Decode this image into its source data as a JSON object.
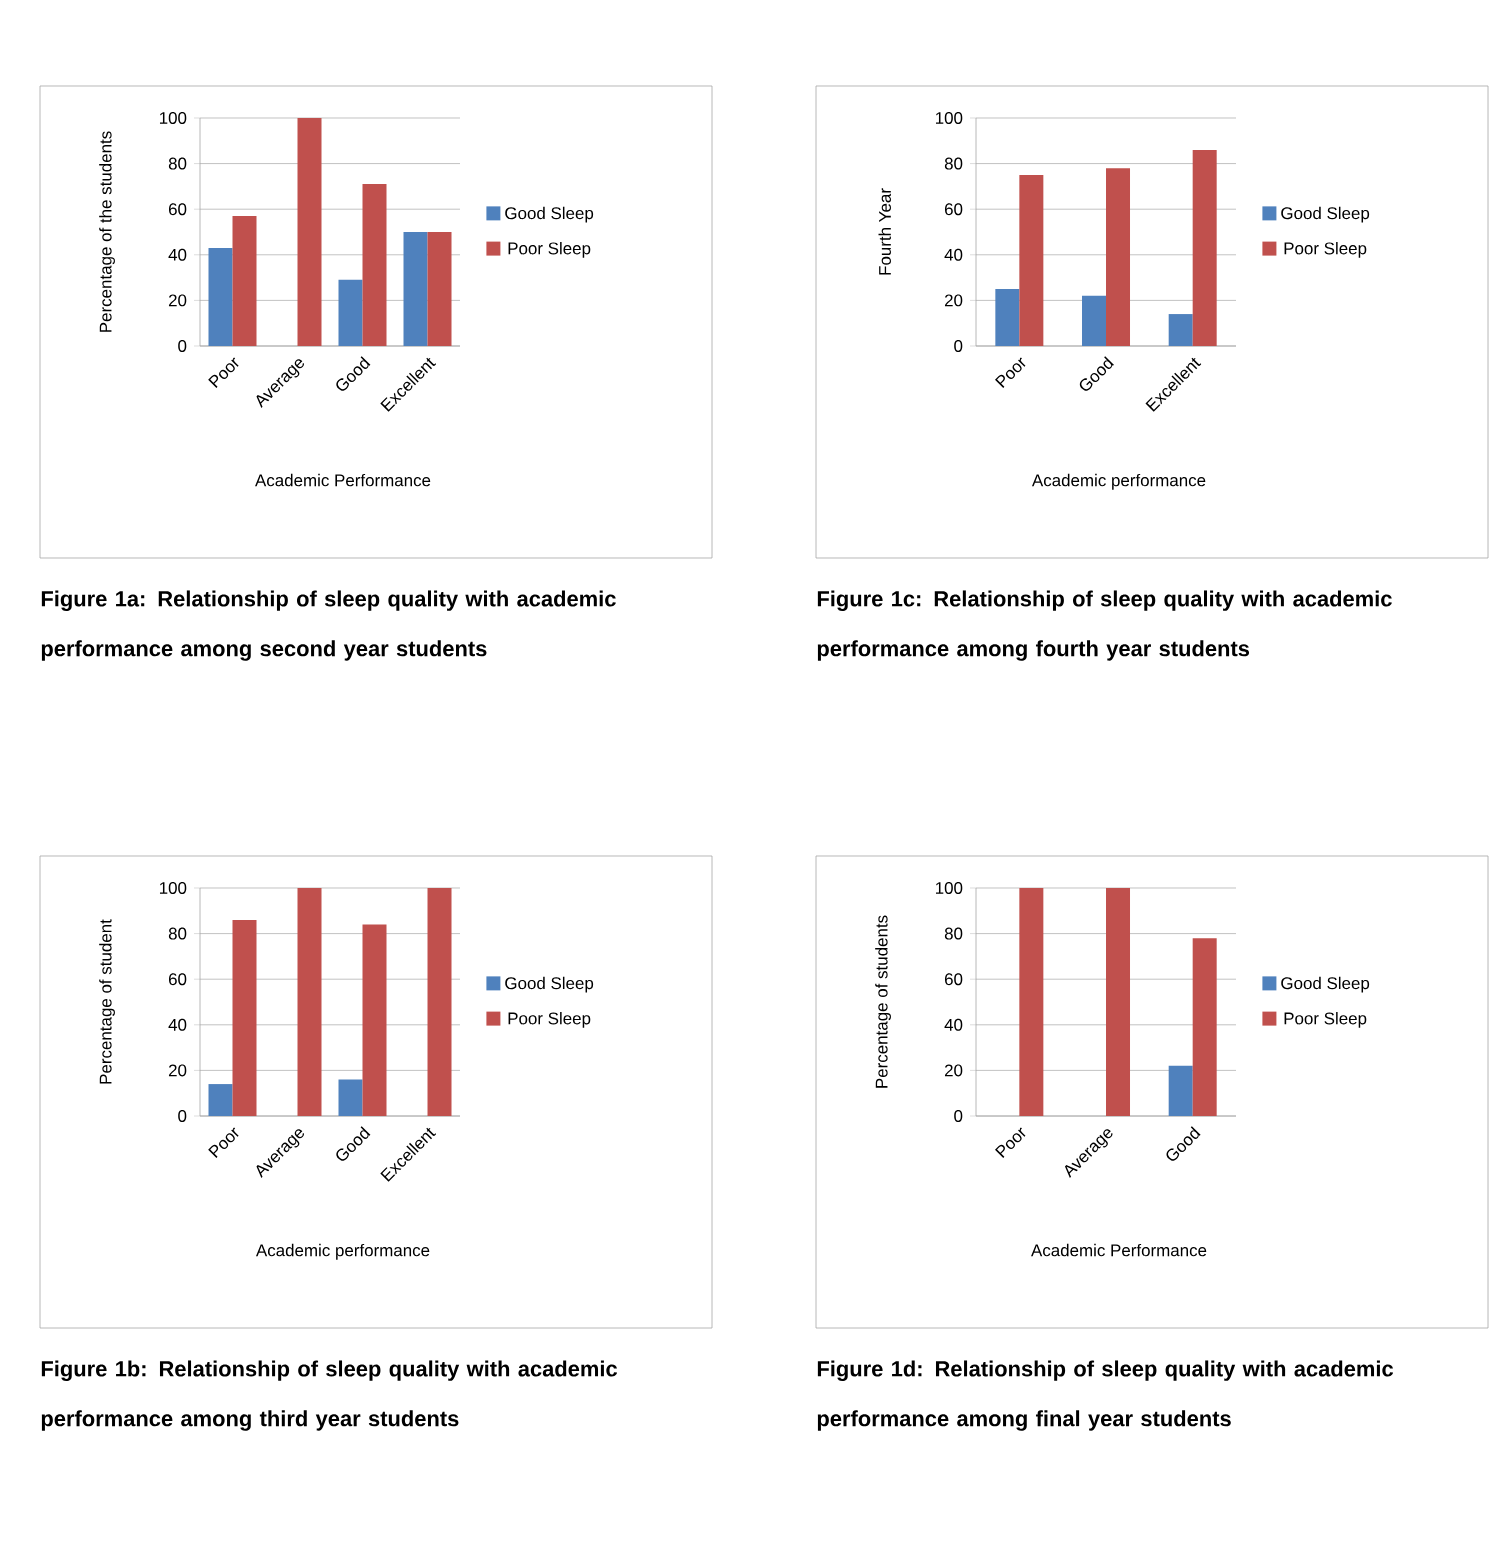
{
  "chart_data": [
    {
      "type": "bar",
      "title": "Figure 1a: Relationship of sleep quality with academic performance among second year students",
      "xlabel": "Academic Performance",
      "ylabel": "Percentage of the students",
      "categories": [
        "Poor",
        "Average",
        "Good",
        "Excellent"
      ],
      "series": [
        {
          "name": "Good Sleep",
          "color": "#4f81bd",
          "values": [
            43,
            0,
            29,
            50
          ]
        },
        {
          "name": "Poor Sleep",
          "color": "#c0504d",
          "values": [
            57,
            100,
            71,
            50
          ]
        }
      ],
      "ylim": [
        0,
        100
      ],
      "yticks": [
        0,
        20,
        40,
        60,
        80,
        100
      ],
      "grid": "y",
      "legend": "right"
    },
    {
      "type": "bar",
      "title": "Figure 1c: Relationship of sleep quality with academic performance among fourth year students",
      "xlabel": "Academic performance",
      "ylabel": "Fourth Year",
      "categories": [
        "Poor",
        "Good",
        "Excellent"
      ],
      "series": [
        {
          "name": "Good Sleep",
          "color": "#4f81bd",
          "values": [
            25,
            22,
            14
          ]
        },
        {
          "name": "Poor Sleep",
          "color": "#c0504d",
          "values": [
            75,
            78,
            86
          ]
        }
      ],
      "ylim": [
        0,
        100
      ],
      "yticks": [
        0,
        20,
        40,
        60,
        80,
        100
      ],
      "grid": "y",
      "legend": "right"
    },
    {
      "type": "bar",
      "title": "Figure 1b: Relationship of sleep quality with academic performance among third year students",
      "xlabel": "Academic performance",
      "ylabel": "Percentage of student",
      "categories": [
        "Poor",
        "Average",
        "Good",
        "Excellent"
      ],
      "series": [
        {
          "name": "Good Sleep",
          "color": "#4f81bd",
          "values": [
            14,
            0,
            16,
            0
          ]
        },
        {
          "name": "Poor Sleep",
          "color": "#c0504d",
          "values": [
            86,
            100,
            84,
            100
          ]
        }
      ],
      "ylim": [
        0,
        100
      ],
      "yticks": [
        0,
        20,
        40,
        60,
        80,
        100
      ],
      "grid": "y",
      "legend": "right"
    },
    {
      "type": "bar",
      "title": "Figure 1d: Relationship of sleep quality with academic performance among final year students",
      "xlabel": "Academic Performance",
      "ylabel": "Percentage of students",
      "categories": [
        "Poor",
        "Average",
        "Good"
      ],
      "series": [
        {
          "name": "Good Sleep",
          "color": "#4f81bd",
          "values": [
            0,
            0,
            22
          ]
        },
        {
          "name": "Poor Sleep",
          "color": "#c0504d",
          "values": [
            100,
            100,
            78
          ]
        }
      ],
      "ylim": [
        0,
        100
      ],
      "yticks": [
        0,
        20,
        40,
        60,
        80,
        100
      ],
      "grid": "y",
      "legend": "right"
    }
  ]
}
